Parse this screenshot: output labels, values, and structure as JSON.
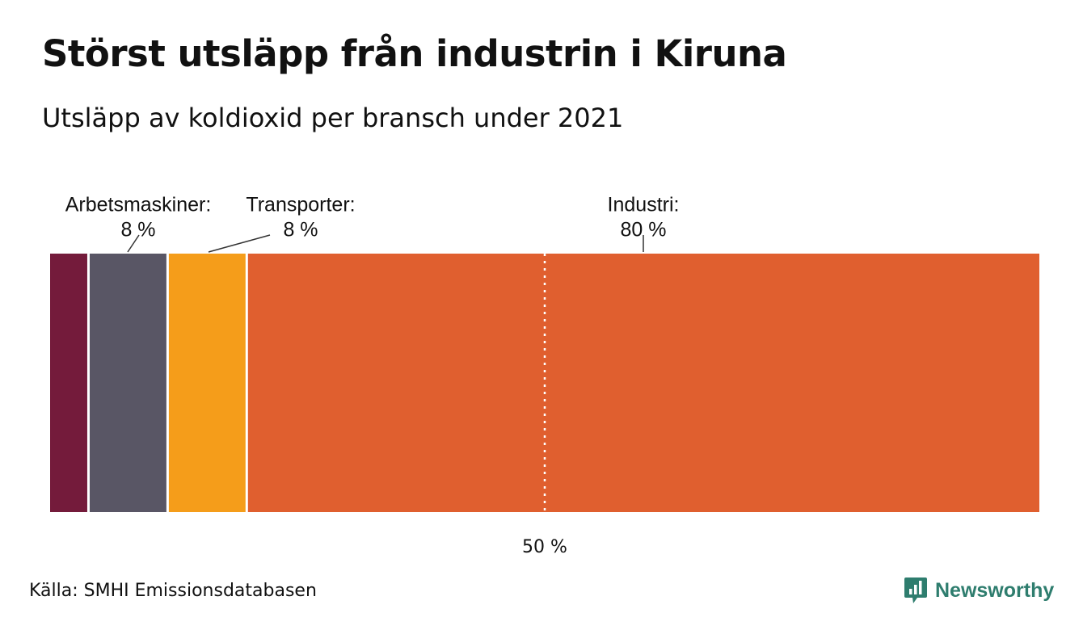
{
  "header": {
    "title": "Störst utsläpp från industrin i Kiruna",
    "subtitle": "Utsläpp av koldioxid per bransch under 2021"
  },
  "chart_data": {
    "type": "bar",
    "orientation": "horizontal-stacked",
    "total": 100,
    "segments": [
      {
        "name": "",
        "value": 4,
        "color": "#741b3b",
        "label": "",
        "value_label": ""
      },
      {
        "name": "Arbetsmaskiner",
        "value": 8,
        "color": "#595665",
        "label": "Arbetsmaskiner:",
        "value_label": "8 %"
      },
      {
        "name": "Transporter",
        "value": 8,
        "color": "#f59d1a",
        "label": "Transporter:",
        "value_label": "8 %"
      },
      {
        "name": "Industri",
        "value": 80,
        "color": "#e05f2f",
        "label": "Industri:",
        "value_label": "80 %"
      }
    ],
    "reference_line": {
      "value": 50,
      "label": "50 %",
      "style": "dotted"
    },
    "xlim": [
      0,
      100
    ]
  },
  "footer": {
    "source": "Källa: SMHI Emissionsdatabasen",
    "brand_name": "Newsworthy",
    "brand_color": "#2e7d6e"
  }
}
